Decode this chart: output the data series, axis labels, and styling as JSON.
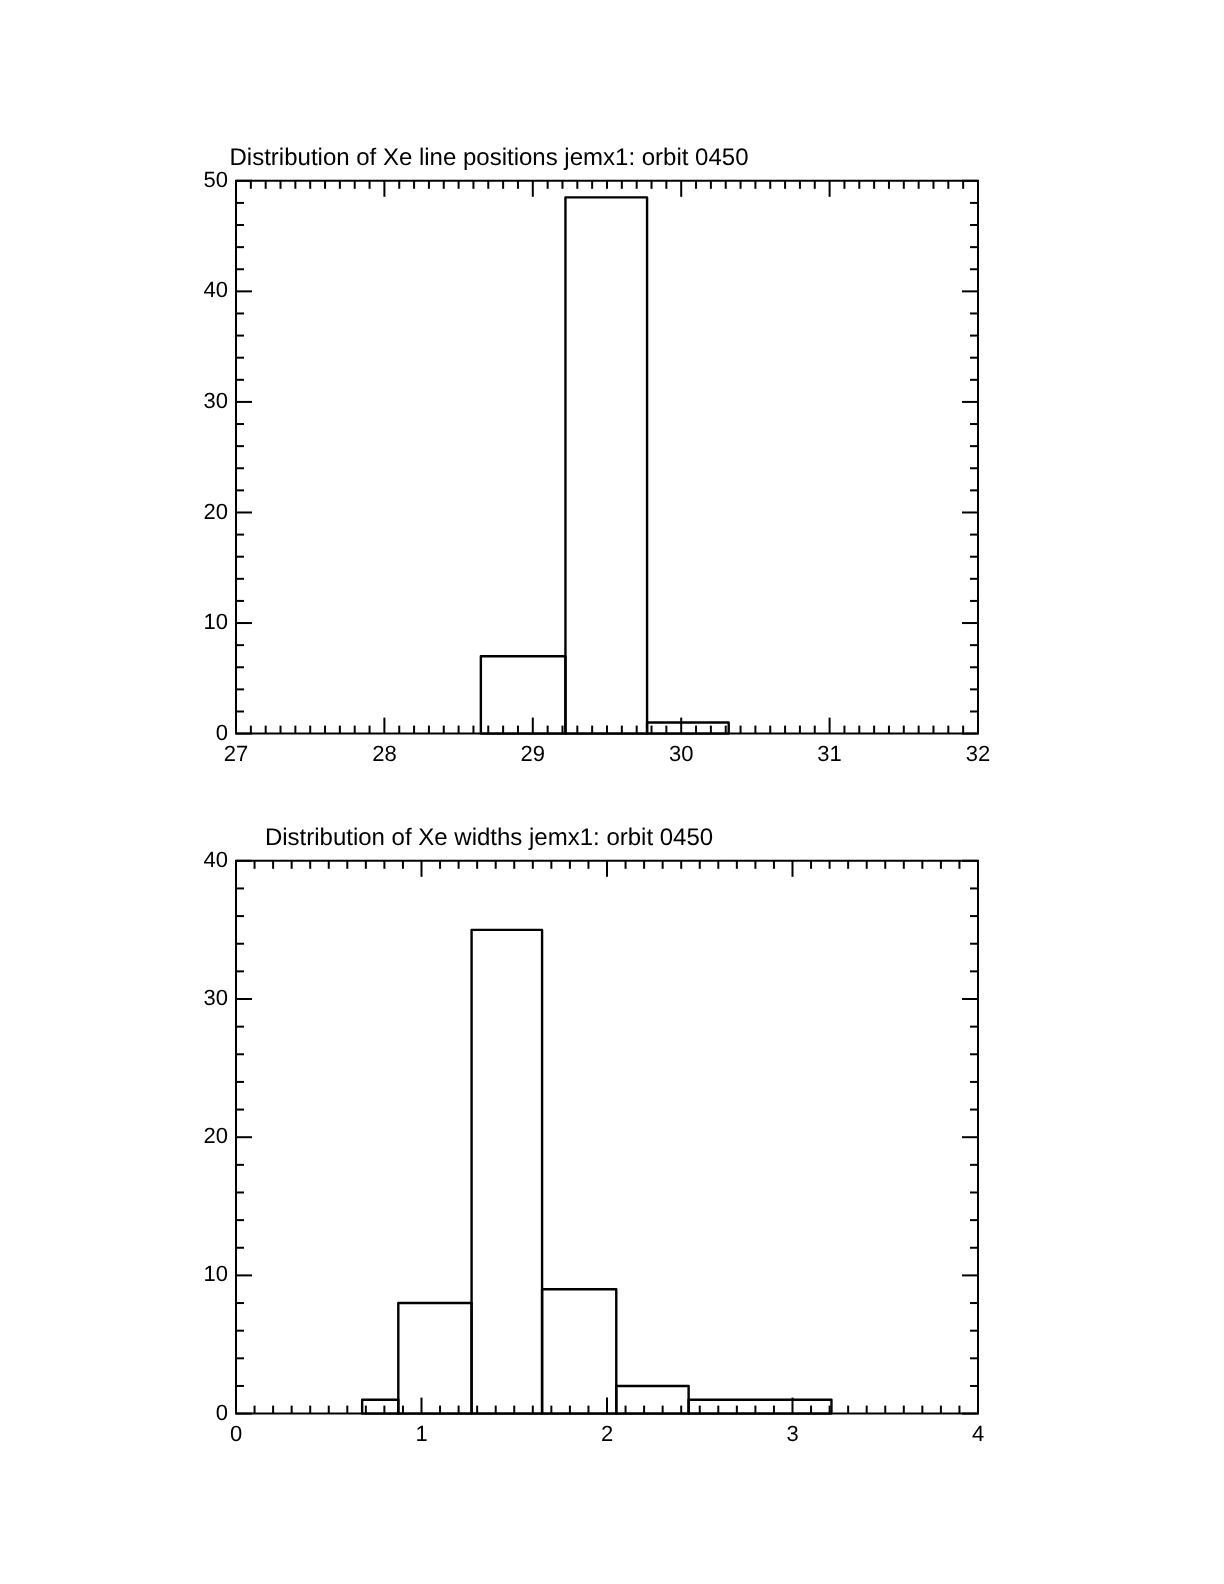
{
  "chart_data": [
    {
      "type": "histogram",
      "title": "Distribution of Xe line positions jemx1: orbit 0450",
      "bins": [
        28.65,
        29.22,
        29.77,
        30.32
      ],
      "values": [
        7,
        48.5,
        1
      ],
      "color": "#000000",
      "xlim": [
        27,
        32
      ],
      "xticks": [
        27,
        28,
        29,
        30,
        31,
        32
      ],
      "ylim": [
        0,
        50
      ],
      "yticks": [
        0,
        10,
        20,
        30,
        40,
        50
      ],
      "grid": false,
      "legend": false
    },
    {
      "type": "histogram",
      "title": "Distribution of Xe widths jemx1: orbit 0450",
      "bins": [
        0.68,
        0.875,
        1.27,
        1.65,
        2.05,
        2.44,
        3.21
      ],
      "values": [
        1,
        8,
        35,
        9,
        2,
        1
      ],
      "color": "#000000",
      "xlim": [
        0,
        4
      ],
      "xticks": [
        0,
        1,
        2,
        3,
        4
      ],
      "ylim": [
        0,
        40
      ],
      "yticks": [
        0,
        10,
        20,
        30,
        40
      ],
      "grid": false,
      "legend": false
    }
  ]
}
